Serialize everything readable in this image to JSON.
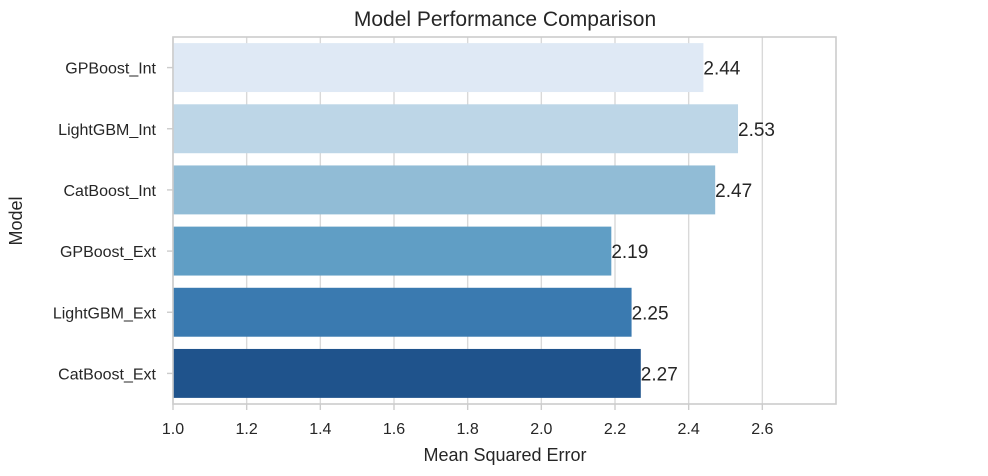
{
  "chart_data": {
    "type": "bar",
    "orientation": "horizontal",
    "title": "Model Performance Comparison",
    "xlabel": "Mean Squared Error",
    "ylabel": "Model",
    "xlim": [
      1.0,
      2.8
    ],
    "xticks": [
      1.0,
      1.2,
      1.4,
      1.6,
      1.8,
      2.0,
      2.2,
      2.4,
      2.6
    ],
    "xtick_labels": [
      "1.0",
      "1.2",
      "1.4",
      "1.6",
      "1.8",
      "2.0",
      "2.2",
      "2.4",
      "2.6"
    ],
    "grid": true,
    "categories": [
      "GPBoost_Int",
      "LightGBM_Int",
      "CatBoost_Int",
      "GPBoost_Ext",
      "LightGBM_Ext",
      "CatBoost_Ext"
    ],
    "values": [
      2.44,
      2.534,
      2.472,
      2.19,
      2.245,
      2.27
    ],
    "value_labels": [
      "2.44",
      "2.53",
      "2.47",
      "2.19",
      "2.25",
      "2.27"
    ],
    "bar_colors": [
      "#dfe9f5",
      "#bdd6e7",
      "#91bcd6",
      "#609ec5",
      "#3a7ab0",
      "#1f538c"
    ]
  }
}
